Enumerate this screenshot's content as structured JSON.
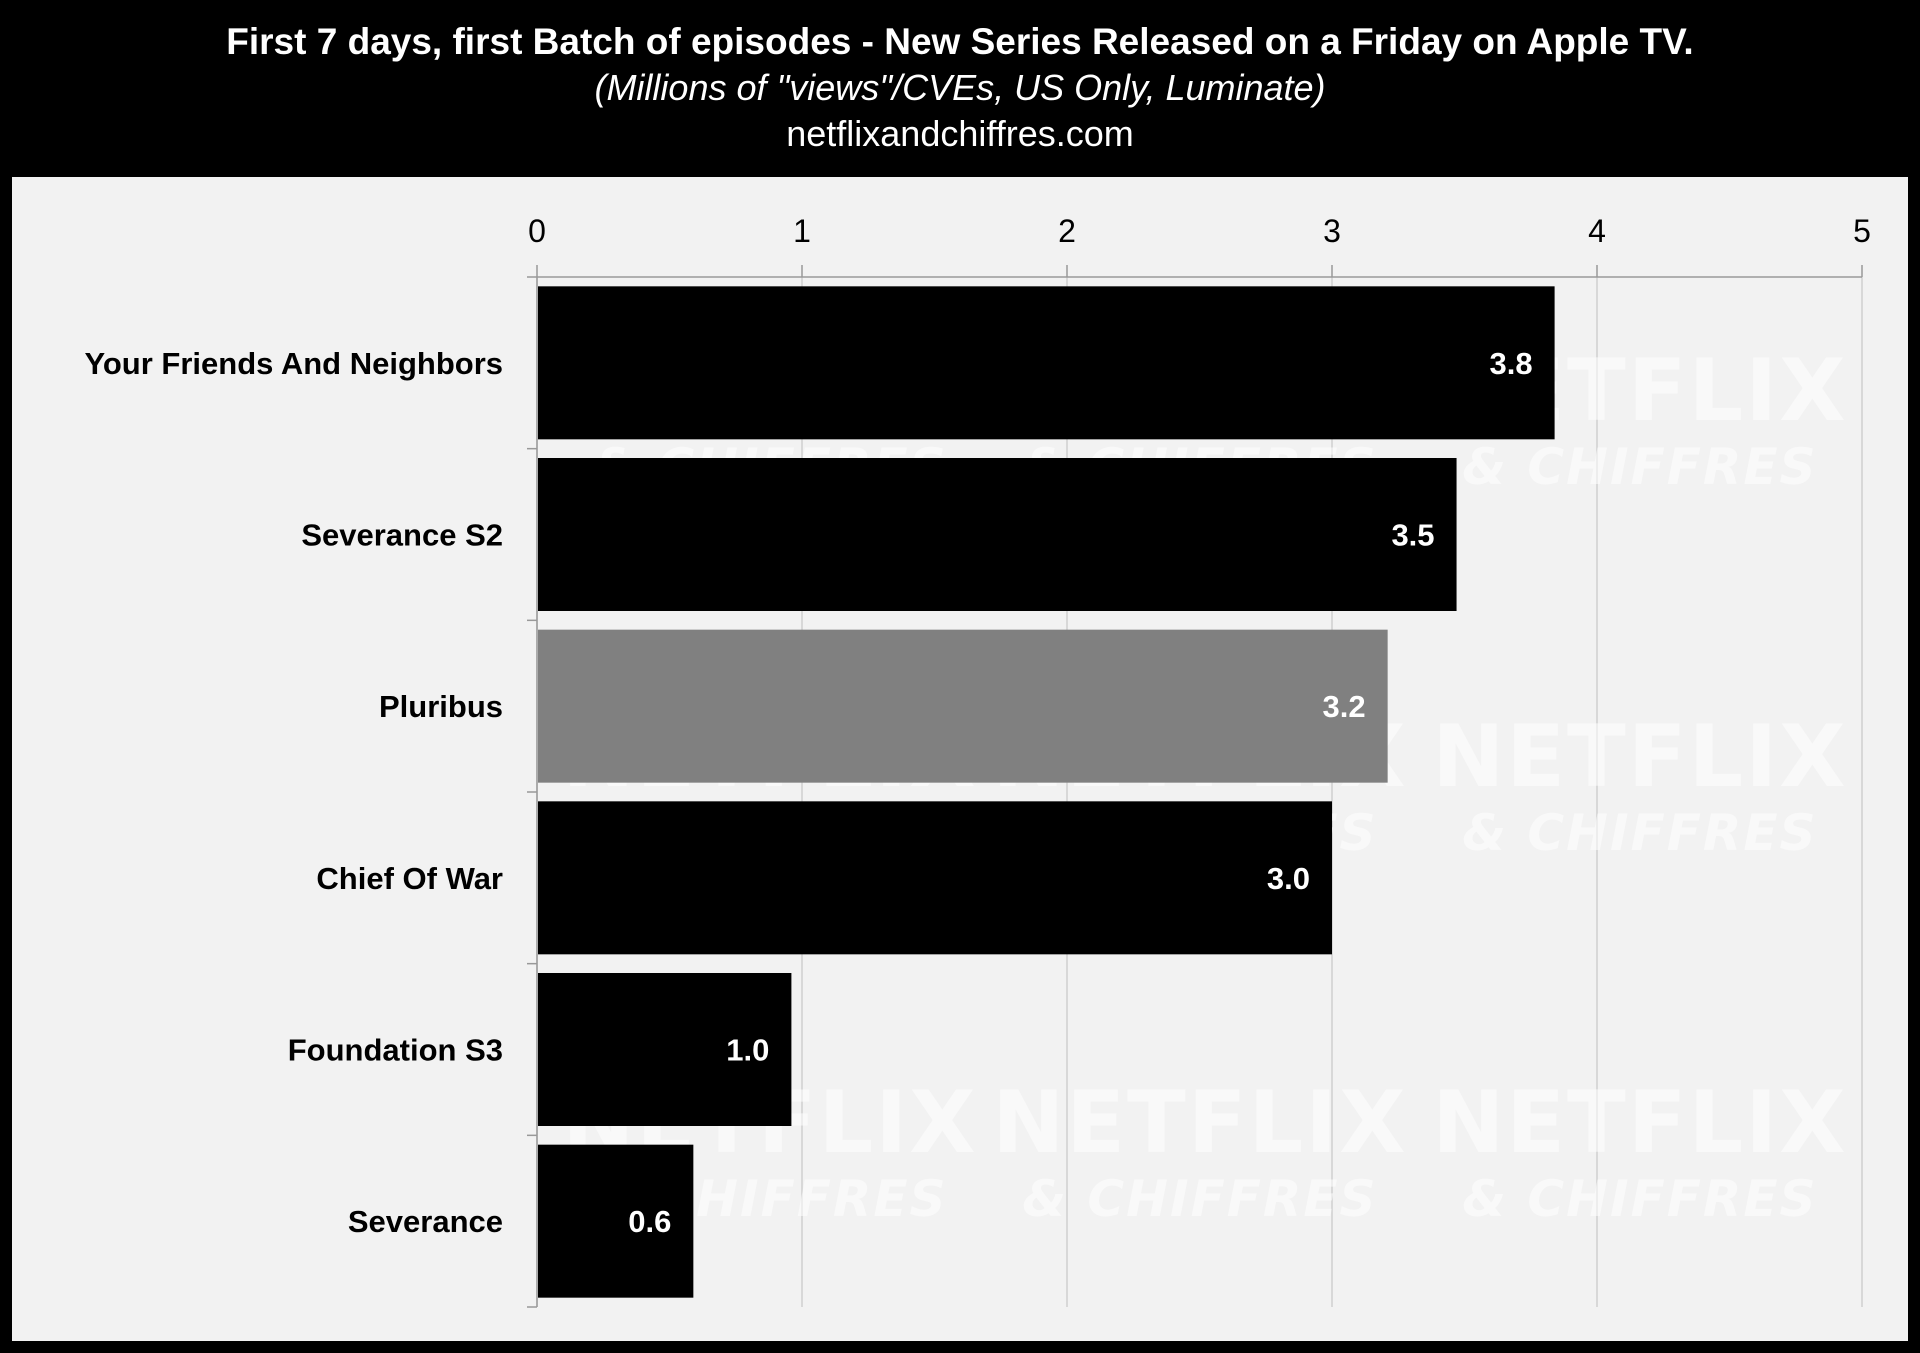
{
  "header": {
    "title": "First 7 days, first Batch of episodes - New Series Released on a Friday on Apple TV.",
    "subtitle": "(Millions of \"views\"/CVEs, US Only, Luminate)",
    "source": "netflixandchiffres.com"
  },
  "watermark": {
    "line1": "NETFLIX",
    "line2": "& CHIFFRES"
  },
  "colors": {
    "background": "#000000",
    "panel": "#f2f2f2",
    "bar_default": "#000000",
    "bar_highlight": "#808080",
    "gridline": "#d0d0d0",
    "value_label": "#ffffff"
  },
  "chart_data": {
    "type": "bar",
    "orientation": "horizontal",
    "title": "First 7 days, first Batch of episodes - New Series Released on a Friday on Apple TV.",
    "xlabel": "",
    "ylabel": "",
    "xlim": [
      0,
      5
    ],
    "x_ticks": [
      "0",
      "1",
      "2",
      "3",
      "4",
      "5"
    ],
    "grid": true,
    "categories": [
      "Your Friends And Neighbors",
      "Severance S2",
      "Pluribus",
      "Chief Of War",
      "Foundation S3",
      "Severance"
    ],
    "values": [
      3.84,
      3.47,
      3.21,
      3.0,
      0.96,
      0.59
    ],
    "value_labels": [
      "3.8",
      "3.5",
      "3.2",
      "3.0",
      "1.0",
      "0.6"
    ],
    "highlighted": [
      false,
      false,
      true,
      false,
      false,
      false
    ]
  }
}
